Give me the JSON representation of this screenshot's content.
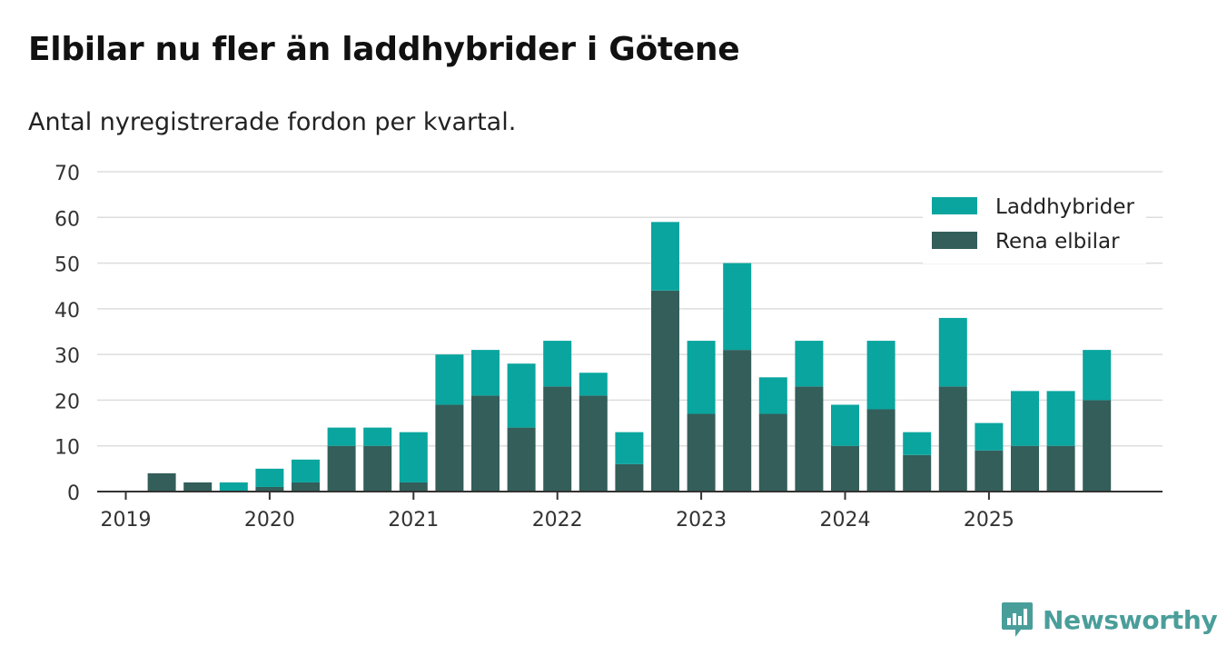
{
  "title": "Elbilar nu fler än laddhybrider i Götene",
  "subtitle": "Antal nyregistrerade fordon per kvartal.",
  "brand": "Newsworthy",
  "colors": {
    "laddhybrider": "#0aa59f",
    "rena_elbilar": "#335e5a",
    "grid": "#dddddd",
    "axis": "#333333",
    "logo": "#4a9e9a"
  },
  "chart_data": {
    "type": "bar",
    "stacked": true,
    "x": [
      "2019 Q1",
      "2019 Q2",
      "2019 Q3",
      "2019 Q4",
      "2020 Q1",
      "2020 Q2",
      "2020 Q3",
      "2020 Q4",
      "2021 Q1",
      "2021 Q2",
      "2021 Q3",
      "2021 Q4",
      "2022 Q1",
      "2022 Q2",
      "2022 Q3",
      "2022 Q4",
      "2023 Q1",
      "2023 Q2",
      "2023 Q3",
      "2023 Q4",
      "2024 Q1",
      "2024 Q2",
      "2024 Q3",
      "2024 Q4",
      "2025 Q1",
      "2025 Q2",
      "2025 Q3",
      "2025 Q4"
    ],
    "x_tick_labels": [
      "2019",
      "2020",
      "2021",
      "2022",
      "2023",
      "2024",
      "2025"
    ],
    "ylim": [
      0,
      70
    ],
    "y_ticks": [
      0,
      10,
      20,
      30,
      40,
      50,
      60,
      70
    ],
    "grid": true,
    "legend_position": "top-right",
    "series": [
      {
        "name": "Rena elbilar",
        "values": [
          0,
          4,
          2,
          0,
          1,
          2,
          10,
          10,
          2,
          19,
          21,
          14,
          23,
          21,
          6,
          44,
          17,
          31,
          17,
          23,
          10,
          18,
          8,
          23,
          9,
          10,
          10,
          20
        ]
      },
      {
        "name": "Laddhybrider",
        "values": [
          0,
          0,
          0,
          2,
          4,
          5,
          4,
          4,
          11,
          11,
          10,
          14,
          10,
          5,
          7,
          15,
          16,
          19,
          8,
          10,
          9,
          15,
          5,
          15,
          6,
          12,
          12,
          11
        ]
      }
    ]
  }
}
